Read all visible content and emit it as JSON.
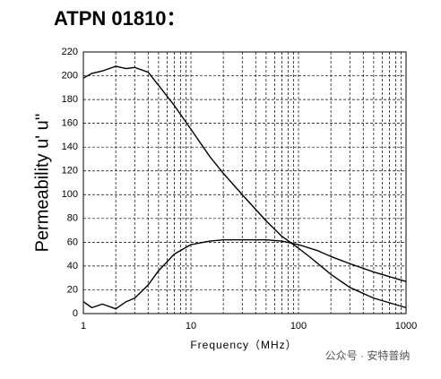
{
  "chart_data": {
    "type": "line",
    "title": "ATPN 01810：",
    "x_label": "Frequency（MHz）",
    "y_label": "Permeability u' u''",
    "watermark": "公众号 · 安特普纳",
    "log_x": true,
    "grid": true,
    "xlim": [
      1,
      1000
    ],
    "xticks": [
      1,
      10,
      100,
      1000
    ],
    "ylim": [
      0,
      220
    ],
    "yticks": [
      0,
      20,
      40,
      60,
      80,
      100,
      120,
      140,
      160,
      180,
      200,
      220
    ],
    "series": [
      {
        "name": "u'",
        "color": "#000000",
        "x": [
          1,
          1.2,
          1.5,
          2,
          2.5,
          3,
          4,
          5,
          7,
          10,
          15,
          20,
          30,
          50,
          70,
          100,
          130,
          200,
          300,
          500,
          1000
        ],
        "values": [
          198,
          202,
          204,
          208,
          206,
          207,
          203,
          192,
          175,
          155,
          132,
          118,
          100,
          78,
          65,
          55,
          47,
          33,
          22,
          13,
          5
        ]
      },
      {
        "name": "u''",
        "color": "#000000",
        "x": [
          1,
          1.2,
          1.5,
          2,
          2.5,
          3,
          4,
          5,
          7,
          10,
          15,
          20,
          30,
          50,
          70,
          100,
          150,
          200,
          300,
          500,
          1000
        ],
        "values": [
          10,
          5,
          8,
          4,
          10,
          13,
          24,
          36,
          50,
          58,
          61,
          62,
          62,
          62,
          61,
          58,
          53,
          48,
          42,
          35,
          27
        ]
      }
    ]
  }
}
